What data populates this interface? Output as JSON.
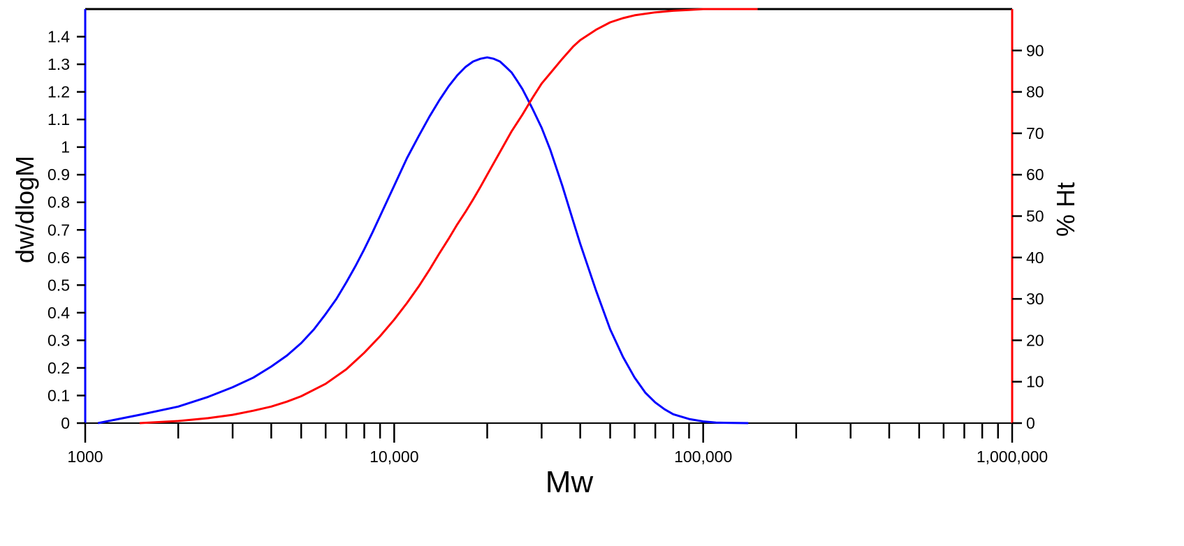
{
  "chart_data": {
    "type": "line",
    "title": "",
    "xlabel": "Mw",
    "ylabel_left": "dw/dlogM",
    "ylabel_right": "% Ht",
    "xscale": "log",
    "xlim": [
      1000,
      1000000
    ],
    "ylim_left": [
      0,
      1.5
    ],
    "ylim_right": [
      0,
      100
    ],
    "x_tick_labels": [
      {
        "value": 1000,
        "label": "1000"
      },
      {
        "value": 10000,
        "label": "10,000"
      },
      {
        "value": 100000,
        "label": "100,000"
      },
      {
        "value": 1000000,
        "label": "1,000,000"
      }
    ],
    "y_left_ticks": [
      {
        "value": 0,
        "label": "0"
      },
      {
        "value": 0.1,
        "label": "0.1"
      },
      {
        "value": 0.2,
        "label": "0.2"
      },
      {
        "value": 0.3,
        "label": "0.3"
      },
      {
        "value": 0.4,
        "label": "0.4"
      },
      {
        "value": 0.5,
        "label": "0.5"
      },
      {
        "value": 0.6,
        "label": "0.6"
      },
      {
        "value": 0.7,
        "label": "0.7"
      },
      {
        "value": 0.8,
        "label": "0.8"
      },
      {
        "value": 0.9,
        "label": "0.9"
      },
      {
        "value": 1.0,
        "label": "1"
      },
      {
        "value": 1.1,
        "label": "1.1"
      },
      {
        "value": 1.2,
        "label": "1.2"
      },
      {
        "value": 1.3,
        "label": "1.3"
      },
      {
        "value": 1.4,
        "label": "1.4"
      }
    ],
    "y_right_ticks": [
      {
        "value": 0,
        "label": "0"
      },
      {
        "value": 10,
        "label": "10"
      },
      {
        "value": 20,
        "label": "20"
      },
      {
        "value": 30,
        "label": "30"
      },
      {
        "value": 40,
        "label": "40"
      },
      {
        "value": 50,
        "label": "50"
      },
      {
        "value": 60,
        "label": "60"
      },
      {
        "value": 70,
        "label": "70"
      },
      {
        "value": 80,
        "label": "80"
      },
      {
        "value": 90,
        "label": "90"
      }
    ],
    "series": [
      {
        "name": "dw/dlogM",
        "axis": "left",
        "color": "#0000ff",
        "x": [
          1100,
          1500,
          2000,
          2500,
          3000,
          3500,
          4000,
          4500,
          5000,
          5500,
          6000,
          6500,
          7000,
          7500,
          8000,
          8500,
          9000,
          10000,
          11000,
          12000,
          13000,
          14000,
          15000,
          16000,
          17000,
          18000,
          19000,
          20000,
          21000,
          22000,
          23000,
          24000,
          25000,
          26000,
          27000,
          28000,
          30000,
          32000,
          35000,
          38000,
          40000,
          45000,
          50000,
          55000,
          60000,
          65000,
          70000,
          75000,
          80000,
          90000,
          100000,
          110000,
          120000,
          140000
        ],
        "values": [
          0,
          0.03,
          0.06,
          0.095,
          0.13,
          0.165,
          0.205,
          0.245,
          0.29,
          0.34,
          0.395,
          0.45,
          0.51,
          0.57,
          0.63,
          0.69,
          0.75,
          0.86,
          0.96,
          1.04,
          1.11,
          1.17,
          1.22,
          1.26,
          1.29,
          1.31,
          1.32,
          1.325,
          1.32,
          1.31,
          1.29,
          1.27,
          1.24,
          1.21,
          1.175,
          1.14,
          1.07,
          0.99,
          0.86,
          0.73,
          0.65,
          0.48,
          0.34,
          0.24,
          0.165,
          0.11,
          0.075,
          0.05,
          0.032,
          0.015,
          0.006,
          0.002,
          0.001,
          0
        ]
      },
      {
        "name": "% Ht",
        "axis": "right",
        "color": "#ff0000",
        "x": [
          1500,
          2000,
          2500,
          3000,
          3500,
          4000,
          4500,
          5000,
          6000,
          7000,
          8000,
          9000,
          10000,
          11000,
          12000,
          13000,
          14000,
          15000,
          16000,
          17000,
          18000,
          19000,
          20000,
          22000,
          24000,
          26000,
          28000,
          30000,
          32000,
          35000,
          38000,
          40000,
          45000,
          50000,
          55000,
          60000,
          70000,
          80000,
          90000,
          100000,
          120000,
          150000
        ],
        "values": [
          0,
          0.5,
          1.2,
          2.0,
          3.0,
          4.0,
          5.2,
          6.5,
          9.5,
          13.0,
          17.0,
          21.0,
          25.0,
          29.0,
          33.0,
          37.0,
          41.0,
          44.5,
          48.0,
          51.0,
          54.0,
          57.0,
          60.0,
          65.5,
          70.5,
          74.5,
          78.5,
          82.0,
          84.5,
          88.0,
          91.0,
          92.5,
          95.0,
          96.8,
          97.8,
          98.5,
          99.2,
          99.6,
          99.8,
          100,
          100,
          100
        ]
      }
    ]
  }
}
